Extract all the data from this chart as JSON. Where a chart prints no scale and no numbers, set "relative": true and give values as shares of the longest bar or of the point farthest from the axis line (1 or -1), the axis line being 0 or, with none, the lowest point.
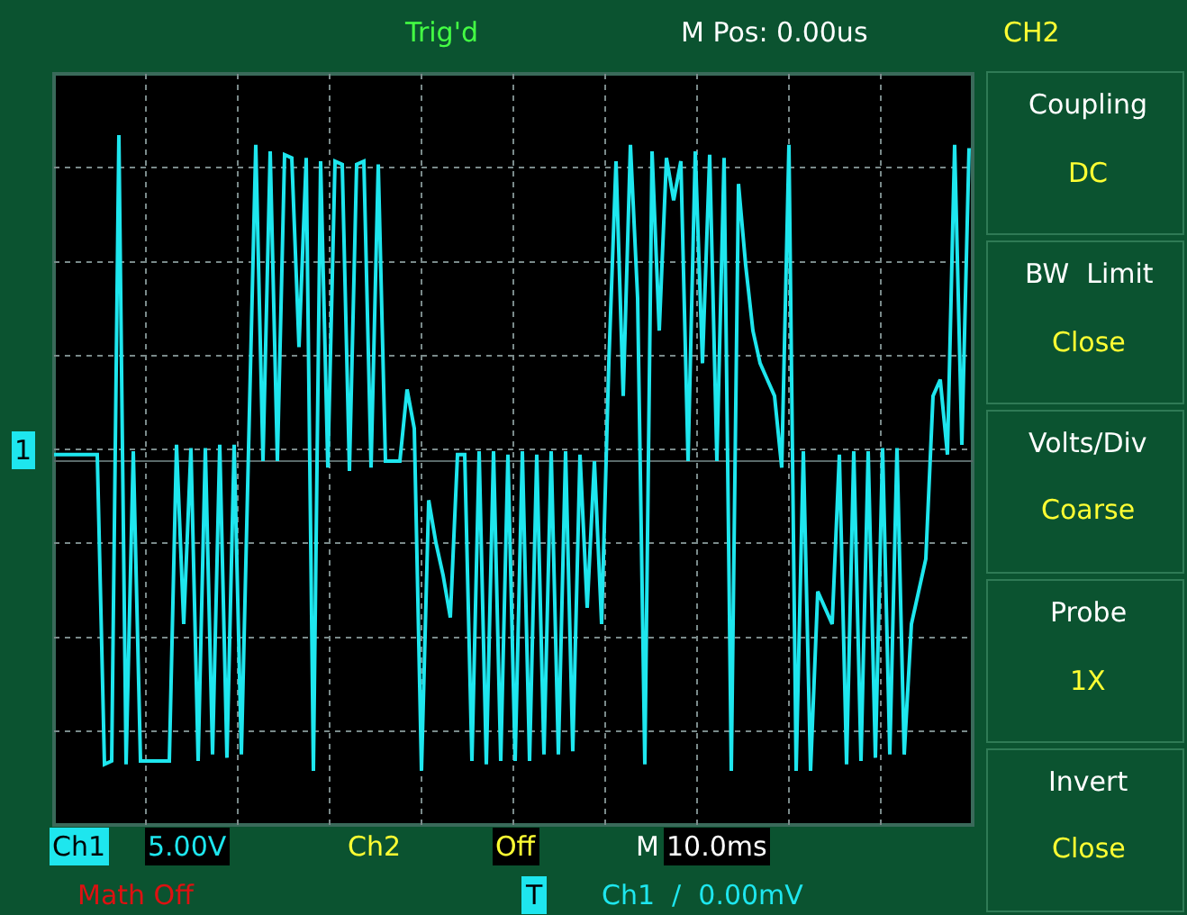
{
  "chart_data": {
    "type": "line",
    "relative": true,
    "grid": true,
    "legend": false,
    "marker": "none",
    "line_style": "solid",
    "categories": [
      null,
      null,
      null,
      null,
      null,
      null,
      null,
      null,
      null,
      null,
      null,
      null,
      null,
      null,
      null,
      null,
      null,
      null,
      null,
      null,
      null,
      null,
      null,
      null,
      null,
      null,
      null,
      null,
      null,
      null,
      null,
      null,
      null,
      null,
      null,
      null,
      null,
      null,
      null,
      null,
      null,
      null,
      null,
      null,
      null,
      null,
      null,
      null,
      null,
      null,
      null,
      null,
      null,
      null,
      null,
      null,
      null,
      null,
      null,
      null,
      null,
      null,
      null,
      null,
      null,
      null,
      null,
      null,
      null,
      null,
      null,
      null,
      null,
      null,
      null,
      null,
      null,
      null,
      null,
      null,
      null,
      null,
      null,
      null,
      null,
      null,
      null,
      null,
      null,
      null,
      null,
      null,
      null,
      null,
      null,
      null,
      null,
      null,
      null,
      null,
      null,
      null,
      null,
      null,
      null,
      null,
      null,
      null,
      null,
      null,
      null,
      null,
      null,
      null,
      null,
      null,
      null,
      null,
      null,
      null,
      null,
      null,
      null,
      null,
      null,
      null,
      null,
      null
    ],
    "series": [
      {
        "color": "#1ee6ee",
        "values": [
          0.02,
          0.02,
          0.02,
          0.02,
          0.02,
          0.02,
          0.02,
          -0.93,
          -0.92,
          1.0,
          -0.93,
          0.03,
          -0.92,
          -0.92,
          -0.92,
          -0.92,
          -0.92,
          0.05,
          -0.5,
          0.04,
          -0.92,
          0.04,
          -0.9,
          0.05,
          -0.91,
          0.05,
          -0.9,
          0.04,
          0.97,
          0.0,
          0.95,
          0.0,
          0.94,
          0.93,
          0.35,
          0.93,
          -0.95,
          0.92,
          -0.02,
          0.92,
          0.91,
          -0.03,
          0.91,
          0.92,
          -0.02,
          0.91,
          0.0,
          0.0,
          0.0,
          0.22,
          0.1,
          -0.95,
          -0.12,
          -0.25,
          -0.35,
          -0.48,
          0.02,
          0.02,
          -0.92,
          0.03,
          -0.93,
          0.03,
          -0.92,
          0.02,
          -0.92,
          0.03,
          -0.92,
          0.02,
          -0.9,
          0.03,
          -0.9,
          0.03,
          -0.89,
          0.02,
          -0.45,
          0.0,
          -0.5,
          0.3,
          0.92,
          0.2,
          0.97,
          0.5,
          -0.93,
          0.95,
          0.4,
          0.93,
          0.8,
          0.92,
          0.0,
          0.95,
          0.3,
          0.94,
          0.0,
          0.93,
          -0.95,
          0.85,
          0.6,
          0.4,
          0.3,
          0.25,
          0.2,
          -0.02,
          0.97,
          -0.95,
          0.03,
          -0.95,
          -0.4,
          -0.45,
          -0.5,
          0.02,
          -0.93,
          0.03,
          -0.92,
          0.03,
          -0.91,
          0.04,
          -0.9,
          0.04,
          -0.9,
          -0.5,
          -0.4,
          -0.3,
          0.2,
          0.25,
          0.02,
          0.97,
          0.05,
          0.96
        ]
      }
    ],
    "annotations": [
      "Trig'd",
      "M Pos: 0.00us",
      "CH2",
      "Coupling",
      "DC",
      "BW  Limit",
      "Close",
      "Volts/Div",
      "Coarse",
      "Probe",
      "1X",
      "Invert",
      "Close",
      "Ch1",
      "5.00V",
      "Ch2",
      "Off",
      "M",
      "10.0ms",
      "Math Off",
      "T",
      "Ch1  /  0.00mV",
      "1"
    ]
  }
}
